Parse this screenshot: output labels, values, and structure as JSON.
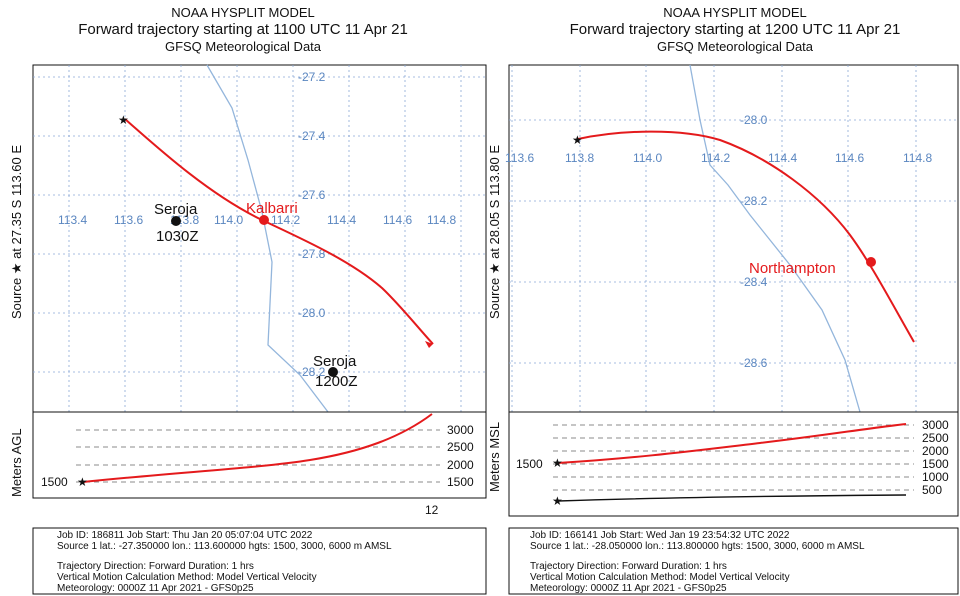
{
  "panels": [
    {
      "title1": "NOAA HYSPLIT MODEL",
      "title2": "Forward trajectory starting at 1100 UTC 11 Apr 21",
      "title3": "GFSQ Meteorological Data",
      "side_label": "Source ★  at   27.35 S  113.60 E",
      "lon_labels": [
        "113.4",
        "113.6",
        "113.8",
        "114.0",
        "114.2",
        "114.4",
        "114.6",
        "114.8"
      ],
      "lat_labels": [
        "-27.2",
        "-27.4",
        "-27.6",
        "-27.8",
        "-28.0",
        "-28.2"
      ],
      "places": {
        "kalbarri": "Kalbarri",
        "seroja1": "Seroja",
        "seroja1_time": "1030Z",
        "seroja2": "Seroja",
        "seroja2_time": "1200Z"
      },
      "height_axis_label": "Meters AGL",
      "height_ticks": [
        "3000",
        "2500",
        "2000",
        "1500"
      ],
      "start_height": "1500",
      "time_tick": "12",
      "footer": [
        "Job ID: 186811                  Job Start: Thu Jan 20 05:07:04 UTC 2022",
        "Source 1 lat.: -27.350000  lon.: 113.600000  hgts: 1500, 3000, 6000 m AMSL",
        "Trajectory Direction: Forward     Duration: 1 hrs",
        "Vertical Motion Calculation Method:      Model Vertical Velocity",
        "Meteorology: 0000Z 11 Apr 2021 - GFS0p25"
      ]
    },
    {
      "title1": "NOAA HYSPLIT MODEL",
      "title2": "Forward trajectory starting at 1200 UTC 11 Apr 21",
      "title3": "GFSQ Meteorological Data",
      "side_label": "Source ★  at   28.05 S  113.80 E",
      "lon_labels": [
        "113.6",
        "113.8",
        "114.0",
        "114.2",
        "114.4",
        "114.6",
        "114.8"
      ],
      "lat_labels": [
        "-28.0",
        "-28.2",
        "-28.4",
        "-28.6"
      ],
      "places": {
        "northampton": "Northampton"
      },
      "height_axis_label": "Meters MSL",
      "height_ticks": [
        "3000",
        "2500",
        "2000",
        "1500",
        "1000",
        "500"
      ],
      "start_height": "1500",
      "footer": [
        "Job ID: 166141                  Job Start: Wed Jan 19 23:54:32 UTC 2022",
        "Source 1 lat.: -28.050000  lon.: 113.800000  hgts: 1500, 3000, 6000 m AMSL",
        "Trajectory Direction: Forward     Duration: 1 hrs",
        "Vertical Motion Calculation Method:      Model Vertical Velocity",
        "Meteorology: 0000Z 11 Apr 2021 - GFS0p25"
      ]
    }
  ]
}
